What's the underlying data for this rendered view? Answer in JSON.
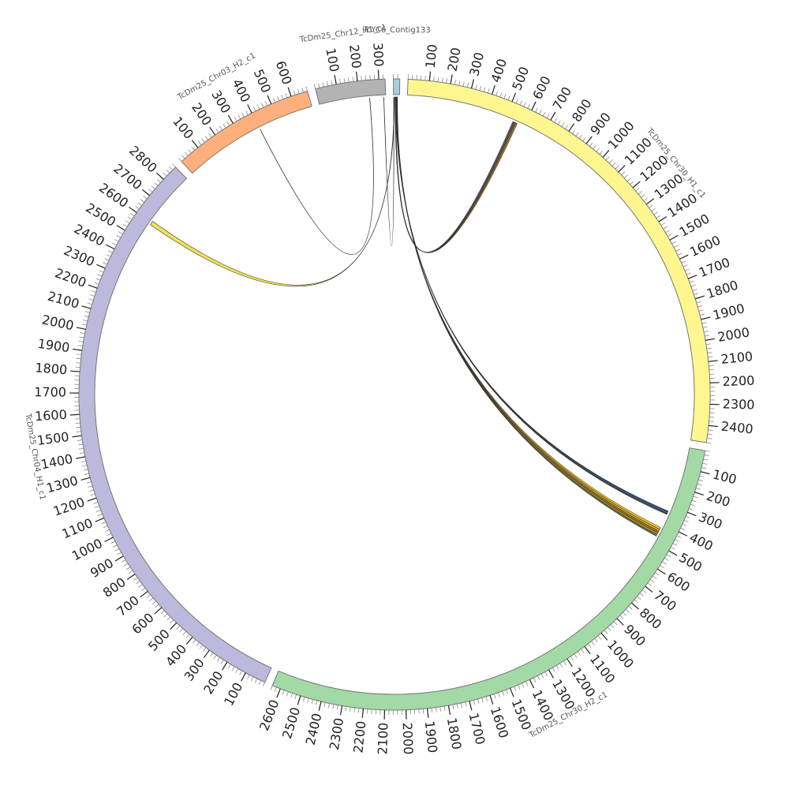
{
  "chart_data": {
    "type": "circos",
    "segments": [
      {
        "name": "TcYC6_Contig133",
        "length": 30,
        "color": "#a6cee3",
        "ticks": []
      },
      {
        "name": "TcDm25_Chr30_H1_c1",
        "length": 2480,
        "color": "#fff68f",
        "ticks": [
          100,
          200,
          300,
          400,
          500,
          600,
          700,
          800,
          900,
          1000,
          1100,
          1200,
          1300,
          1400,
          1500,
          1600,
          1700,
          1800,
          1900,
          2000,
          2100,
          2200,
          2300,
          2400
        ]
      },
      {
        "name": "TcDm25_Chr30_H2_c1",
        "length": 2640,
        "color": "#a3d9a5",
        "ticks": [
          100,
          200,
          300,
          400,
          500,
          600,
          700,
          800,
          900,
          1000,
          1100,
          1200,
          1300,
          1400,
          1500,
          1600,
          1700,
          1800,
          1900,
          2000,
          2100,
          2200,
          2300,
          2400,
          2500,
          2600
        ]
      },
      {
        "name": "TcDm25_Chr04_H1_c1",
        "length": 2880,
        "color": "#bcb9dc",
        "ticks": [
          100,
          200,
          300,
          400,
          500,
          600,
          700,
          800,
          900,
          1000,
          1100,
          1200,
          1300,
          1400,
          1500,
          1600,
          1700,
          1800,
          1900,
          2000,
          2100,
          2200,
          2300,
          2400,
          2500,
          2600,
          2700,
          2800
        ]
      },
      {
        "name": "TcDm25_Chr03_H2_c1",
        "length": 680,
        "color": "#fdb07b",
        "ticks": [
          100,
          200,
          300,
          400,
          500,
          600
        ]
      },
      {
        "name": "TcDm25_Chr12_H1_c1",
        "length": 330,
        "color": "#b3b3b3",
        "ticks": [
          100,
          200,
          300
        ]
      }
    ],
    "minor_tick_step": 20,
    "links": [
      {
        "from": {
          "segment": 0,
          "start": 8,
          "end": 9
        },
        "to": {
          "segment": 1,
          "start": 540,
          "end": 546
        },
        "color": "#1f78b4"
      },
      {
        "from": {
          "segment": 0,
          "start": 9,
          "end": 10
        },
        "to": {
          "segment": 1,
          "start": 546,
          "end": 552
        },
        "color": "#e31a1c"
      },
      {
        "from": {
          "segment": 0,
          "start": 10,
          "end": 11
        },
        "to": {
          "segment": 1,
          "start": 552,
          "end": 558
        },
        "color": "#33a02c"
      },
      {
        "from": {
          "segment": 0,
          "start": 11,
          "end": 12
        },
        "to": {
          "segment": 1,
          "start": 558,
          "end": 564
        },
        "color": "#ff7f00"
      },
      {
        "from": {
          "segment": 0,
          "start": 12,
          "end": 13
        },
        "to": {
          "segment": 2,
          "start": 330,
          "end": 336
        },
        "color": "#1f3a93"
      },
      {
        "from": {
          "segment": 0,
          "start": 13,
          "end": 14
        },
        "to": {
          "segment": 2,
          "start": 336,
          "end": 342
        },
        "color": "#2c7fb8"
      },
      {
        "from": {
          "segment": 0,
          "start": 14,
          "end": 15
        },
        "to": {
          "segment": 2,
          "start": 342,
          "end": 348
        },
        "color": "#333333"
      },
      {
        "from": {
          "segment": 0,
          "start": 15,
          "end": 16
        },
        "to": {
          "segment": 2,
          "start": 420,
          "end": 430
        },
        "color": "#ffcc00"
      },
      {
        "from": {
          "segment": 0,
          "start": 16,
          "end": 17
        },
        "to": {
          "segment": 2,
          "start": 430,
          "end": 440
        },
        "color": "#e6a100"
      },
      {
        "from": {
          "segment": 0,
          "start": 17,
          "end": 18
        },
        "to": {
          "segment": 2,
          "start": 440,
          "end": 450
        },
        "color": "#8c6d1f"
      },
      {
        "from": {
          "segment": 0,
          "start": 18,
          "end": 19
        },
        "to": {
          "segment": 2,
          "start": 450,
          "end": 460
        },
        "color": "#b8860b"
      },
      {
        "from": {
          "segment": 0,
          "start": 19,
          "end": 20
        },
        "to": {
          "segment": 2,
          "start": 460,
          "end": 468
        },
        "color": "#556b2f"
      },
      {
        "from": {
          "segment": 0,
          "start": 3,
          "end": 5
        },
        "to": {
          "segment": 3,
          "start": 2590,
          "end": 2610
        },
        "color": "#f0e040"
      },
      {
        "from": {
          "segment": 5,
          "start": 250,
          "end": 251
        },
        "to": {
          "segment": 4,
          "start": 400,
          "end": 401
        },
        "color": "#222222"
      },
      {
        "from": {
          "segment": 5,
          "start": 320,
          "end": 321
        },
        "to": {
          "segment": 0,
          "start": 1,
          "end": 2
        },
        "color": "#8b4513"
      }
    ]
  }
}
